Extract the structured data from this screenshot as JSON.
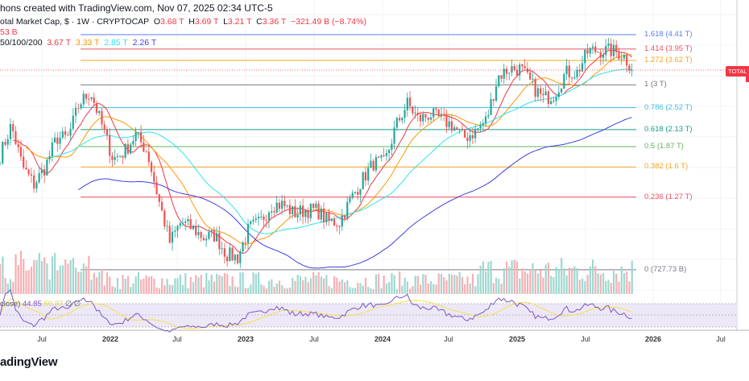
{
  "header": {
    "created": "hons created with TradingView.com, Nov 07, 2025 02:34 UTC-5"
  },
  "legend": {
    "symbol": "otal Market Cap, $ · 1W · CRYPTOCAP",
    "open_label": "O",
    "open": "3.68 T",
    "high_label": "H",
    "high": "3.69 T",
    "low_label": "L",
    "low": "3.21 T",
    "close_label": "C",
    "close": "3.36 T",
    "change": "−321.49 B (−8.74%)",
    "volume": "53 B",
    "ma_label": "50/100/200",
    "ma_values": [
      "3.67 T",
      "3.33 T",
      "2.85 T",
      "2.26 T"
    ],
    "ma_colors": [
      "#f23645",
      "#ff9800",
      "#2de3f0",
      "#3f3fe0"
    ]
  },
  "rsi": {
    "label": "close)",
    "value": "44.85",
    "ma_value": "59.37",
    "extra1": "∅",
    "extra2": "∅"
  },
  "price_tag": "TOTAL",
  "fib_levels": [
    {
      "label": "1.618 (4.41 T)",
      "value": 4.41,
      "color": "#5b7cf0"
    },
    {
      "label": "1.414 (3.95 T)",
      "value": 3.95,
      "color": "#f0505e"
    },
    {
      "label": "1.272 (3.62 T)",
      "value": 3.62,
      "color": "#f5a623"
    },
    {
      "label": "1 (3 T)",
      "value": 3.0,
      "color": "#787b86"
    },
    {
      "label": "0.786 (2.52 T)",
      "value": 2.52,
      "color": "#3bbfe0"
    },
    {
      "label": "0.618 (2.13 T)",
      "value": 2.13,
      "color": "#169c88"
    },
    {
      "label": "0.5 (1.87 T)",
      "value": 1.87,
      "color": "#5cb85c"
    },
    {
      "label": "0.382 (1.6 T)",
      "value": 1.6,
      "color": "#f5a623"
    },
    {
      "label": "0.236 (1.27 T)",
      "value": 1.27,
      "color": "#f0505e"
    },
    {
      "label": "0 (727.73 B)",
      "value": 0.72773,
      "color": "#787b86"
    }
  ],
  "x_axis": [
    "Jul",
    "2022",
    "Jul",
    "2023",
    "Jul",
    "2024",
    "Jul",
    "2025",
    "Jul",
    "2026",
    "Jul"
  ],
  "logo": "adingView",
  "chart_data": {
    "type": "candlestick",
    "interval": "1W",
    "y_scale": "log",
    "y_unit": "T",
    "monthly_close_approx": {
      "x": [
        "2021-03",
        "2021-04",
        "2021-05",
        "2021-06",
        "2021-07",
        "2021-08",
        "2021-09",
        "2021-10",
        "2021-11",
        "2021-12",
        "2022-01",
        "2022-02",
        "2022-03",
        "2022-04",
        "2022-05",
        "2022-06",
        "2022-07",
        "2022-08",
        "2022-09",
        "2022-10",
        "2022-11",
        "2022-12",
        "2023-01",
        "2023-02",
        "2023-03",
        "2023-04",
        "2023-05",
        "2023-06",
        "2023-07",
        "2023-08",
        "2023-09",
        "2023-10",
        "2023-11",
        "2023-12",
        "2024-01",
        "2024-02",
        "2024-03",
        "2024-04",
        "2024-05",
        "2024-06",
        "2024-07",
        "2024-08",
        "2024-09",
        "2024-10",
        "2024-11",
        "2024-12",
        "2025-01",
        "2025-02",
        "2025-03",
        "2025-04",
        "2025-05",
        "2025-06",
        "2025-07",
        "2025-08",
        "2025-09",
        "2025-10",
        "2025-11"
      ],
      "y": [
        1.75,
        2.2,
        1.6,
        1.4,
        1.6,
        2.0,
        2.0,
        2.6,
        2.85,
        2.2,
        1.7,
        1.8,
        2.05,
        1.8,
        1.25,
        0.9,
        1.05,
        1.0,
        0.93,
        0.95,
        0.82,
        0.8,
        1.0,
        1.05,
        1.2,
        1.2,
        1.12,
        1.15,
        1.15,
        1.05,
        1.05,
        1.25,
        1.45,
        1.65,
        1.65,
        2.2,
        2.6,
        2.3,
        2.4,
        2.3,
        2.2,
        2.0,
        2.1,
        2.3,
        3.2,
        3.4,
        3.4,
        3.0,
        2.7,
        2.8,
        3.3,
        3.3,
        3.9,
        3.9,
        3.9,
        3.8,
        3.36
      ]
    }
  }
}
